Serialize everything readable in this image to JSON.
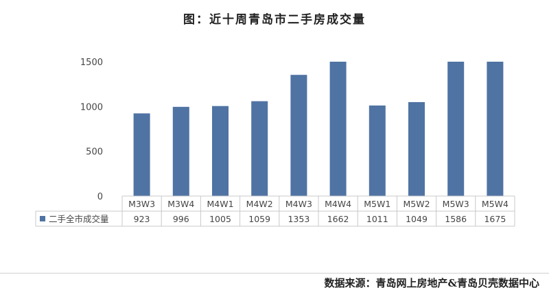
{
  "chart_data": {
    "type": "bar",
    "title": "图：近十周青岛市二手房成交量",
    "categories": [
      "M3W3",
      "M3W4",
      "M4W1",
      "M4W2",
      "M4W3",
      "M4W4",
      "M5W1",
      "M5W2",
      "M5W3",
      "M5W4"
    ],
    "series": [
      {
        "name": "二手全市成交量",
        "values": [
          923,
          996,
          1005,
          1059,
          1353,
          1662,
          1011,
          1049,
          1586,
          1675
        ]
      }
    ],
    "ylim": [
      0,
      1500
    ],
    "yticks": [
      0,
      500,
      1000,
      1500
    ],
    "grid": false,
    "legend": "table-left",
    "data_table": true,
    "color": "#4f73a3"
  },
  "source_text": "数据来源：青岛网上房地产&青岛贝壳数据中心"
}
